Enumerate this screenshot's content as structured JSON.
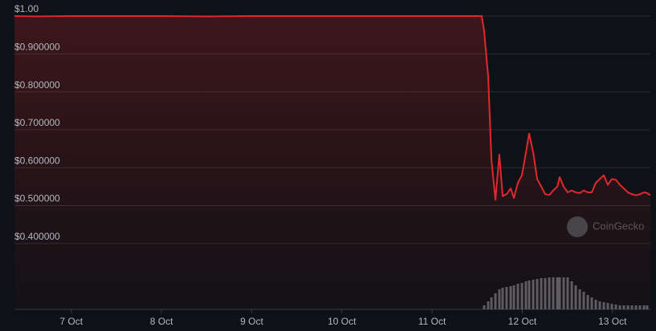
{
  "chart_data": {
    "type": "line",
    "x": [
      6.37,
      6.6,
      7.0,
      7.5,
      8.0,
      8.5,
      9.0,
      9.5,
      10.0,
      10.5,
      11.0,
      11.55,
      11.577,
      11.622,
      11.658,
      11.702,
      11.746,
      11.782,
      11.826,
      11.871,
      11.907,
      11.951,
      11.996,
      12.04,
      12.076,
      12.121,
      12.165,
      12.21,
      12.254,
      12.299,
      12.343,
      12.388,
      12.414,
      12.459,
      12.503,
      12.548,
      12.592,
      12.637,
      12.681,
      12.726,
      12.77,
      12.815,
      12.859,
      12.904,
      12.948,
      12.993,
      13.037,
      13.082,
      13.126,
      13.171,
      13.215,
      13.26,
      13.304,
      13.349,
      13.384,
      13.42
    ],
    "values": [
      1.0,
      0.999,
      1.0,
      1.0,
      1.0,
      0.999,
      1.0,
      1.0,
      1.0,
      1.0,
      1.0,
      1.0,
      0.96,
      0.84,
      0.62,
      0.515,
      0.635,
      0.525,
      0.53,
      0.545,
      0.52,
      0.56,
      0.58,
      0.64,
      0.69,
      0.64,
      0.57,
      0.55,
      0.53,
      0.528,
      0.54,
      0.55,
      0.575,
      0.55,
      0.535,
      0.54,
      0.535,
      0.533,
      0.54,
      0.535,
      0.535,
      0.56,
      0.57,
      0.58,
      0.555,
      0.57,
      0.568,
      0.555,
      0.545,
      0.535,
      0.53,
      0.527,
      0.53,
      0.535,
      0.533,
      0.527
    ],
    "color": "#e0282e",
    "xlim": [
      6.37,
      13.42
    ],
    "xticks": [
      {
        "value": 7,
        "label": "7 Oct"
      },
      {
        "value": 8,
        "label": "8 Oct"
      },
      {
        "value": 9,
        "label": "9 Oct"
      },
      {
        "value": 10,
        "label": "10 Oct"
      },
      {
        "value": 11,
        "label": "11 Oct"
      },
      {
        "value": 12,
        "label": "12 Oct"
      },
      {
        "value": 13,
        "label": "13 Oct"
      }
    ],
    "ylim": [
      0.362,
      1.0
    ],
    "yticks": [
      {
        "value": 1.0,
        "label": "$1.00"
      },
      {
        "value": 0.9,
        "label": "$0.900000"
      },
      {
        "value": 0.8,
        "label": "$0.800000"
      },
      {
        "value": 0.7,
        "label": "$0.700000"
      },
      {
        "value": 0.6,
        "label": "$0.600000"
      },
      {
        "value": 0.5,
        "label": "$0.500000"
      },
      {
        "value": 0.4,
        "label": "$0.400000"
      }
    ],
    "grid": true,
    "volume": {
      "x": [
        11.577,
        11.622,
        11.658,
        11.702,
        11.746,
        11.782,
        11.826,
        11.871,
        11.907,
        11.951,
        11.996,
        12.04,
        12.076,
        12.121,
        12.165,
        12.21,
        12.254,
        12.299,
        12.343,
        12.388,
        12.414,
        12.459,
        12.503,
        12.548,
        12.592,
        12.637,
        12.681,
        12.726,
        12.77,
        12.815,
        12.859,
        12.904,
        12.948,
        12.993,
        13.037,
        13.082,
        13.126,
        13.171,
        13.215,
        13.26,
        13.304,
        13.349,
        13.384
      ],
      "values": [
        5,
        10,
        15,
        20,
        25,
        27,
        28,
        29,
        30,
        32,
        33,
        35,
        36,
        37,
        38,
        39,
        39,
        40,
        40,
        40,
        40,
        40,
        40,
        35,
        30,
        25,
        22,
        18,
        15,
        12,
        10,
        9,
        8,
        7,
        6,
        5,
        5,
        5,
        5,
        5,
        5,
        5,
        5
      ],
      "color": "#5a5d63",
      "vlim": [
        0,
        90
      ]
    },
    "watermark": "CoinGecko"
  }
}
